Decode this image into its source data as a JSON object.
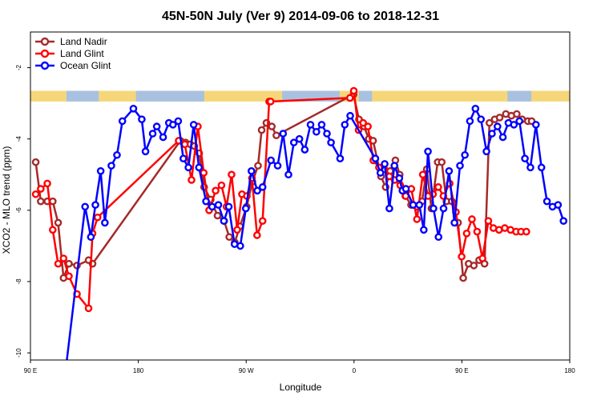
{
  "chart_data": {
    "type": "line",
    "title": "45N-50N July (Ver 9)   2014-09-06 to 2018-12-31",
    "xlabel": "Longitude",
    "ylabel": "XCO2 - MLO trend (ppm)",
    "x_axis": {
      "range_deg_east": [
        90,
        450
      ],
      "ticks": [
        {
          "value": 90,
          "label": "90 E"
        },
        {
          "value": 180,
          "label": "180"
        },
        {
          "value": 270,
          "label": "90 W"
        },
        {
          "value": 360,
          "label": "0"
        },
        {
          "value": 450,
          "label": "90 E"
        },
        {
          "value": 540,
          "label": "180"
        }
      ],
      "note": "longitude unwrapped in degrees east, 90 E to 180 twice around"
    },
    "y_axis": {
      "range": [
        -10.2,
        -1.0
      ],
      "ticks": [
        {
          "value": -2,
          "label": "-2"
        },
        {
          "value": -4,
          "label": "-4"
        },
        {
          "value": -6,
          "label": "-6"
        },
        {
          "value": -8,
          "label": "-8"
        },
        {
          "value": -10,
          "label": "-10"
        }
      ]
    },
    "xlim": [
      90,
      540
    ],
    "ylim": [
      -10.2,
      -1.0
    ],
    "grid": false,
    "legend_position": "top-left",
    "land_mask_strip": {
      "y_top": -2.65,
      "y_bottom": -2.95,
      "land_color": "#f5d77a",
      "ocean_color": "#a9c1e0"
    },
    "series": [
      {
        "name": "Land Nadir",
        "color": "#a52a2a",
        "x": [
          94.4,
          98.6,
          104.1,
          108.6,
          113.1,
          117.6,
          122.1,
          128.8,
          138.5,
          141.8,
          215.1,
          219.4,
          223.4,
          226.7,
          230.8,
          234.9,
          240.4,
          246.1,
          251.6,
          255.9,
          260.5,
          264.8,
          270.4,
          275.2,
          279.9,
          282.9,
          286.9,
          291.4,
          295.2,
          359.6,
          364.1,
          368.4,
          372.3,
          375.9,
          382.5,
          386.4,
          390.1,
          394.5,
          398.1,
          402.8,
          407.6,
          412.5,
          416.8,
          420.7,
          424.6,
          429.8,
          433.2,
          437.1,
          441.6,
          446.8,
          451.1,
          455.6,
          460.0,
          464.4,
          468.9,
          473.0,
          477.4,
          481.5,
          486.7,
          491.3,
          495.8,
          500.2,
          505.0,
          508.2
        ],
        "y": [
          -4.65,
          -5.75,
          -5.75,
          -5.75,
          -6.35,
          -7.9,
          -7.5,
          -7.55,
          -7.4,
          -7.5,
          -4.05,
          -4.1,
          -4.15,
          -4.2,
          -4.4,
          -5.35,
          -5.7,
          -6.15,
          -6.3,
          -6.75,
          -6.9,
          -6.45,
          -5.9,
          -5.2,
          -4.75,
          -3.75,
          -3.55,
          -3.65,
          -3.9,
          -2.75,
          -3.45,
          -3.65,
          -4.0,
          -4.05,
          -5.05,
          -5.35,
          -4.9,
          -4.6,
          -5.0,
          -5.6,
          -5.85,
          -5.9,
          -5.75,
          -4.85,
          -5.95,
          -4.65,
          -4.65,
          -5.75,
          -5.75,
          -6.35,
          -7.9,
          -7.5,
          -7.55,
          -7.4,
          -7.5,
          -3.55,
          -3.45,
          -3.4,
          -3.3,
          -3.35,
          -3.3,
          -3.45,
          -3.5,
          -3.5
        ],
        "hidden_indices_note": "only points within the visible ranges are drawn"
      },
      {
        "name": "Land Glint",
        "color": "#ff0000",
        "x": [
          94.4,
          98.6,
          104.1,
          108.6,
          113.1,
          117.6,
          122.1,
          128.8,
          138.5,
          141.8,
          146.0,
          213.7,
          218.8,
          224.4,
          229.7,
          234.6,
          239.1,
          244.5,
          249.4,
          253.6,
          257.8,
          262.5,
          266.5,
          270.6,
          274.8,
          279.1,
          283.7,
          289.2,
          290.4,
          356.6,
          359.8,
          363.8,
          367.6,
          371.6,
          376.1,
          380.8,
          385.3,
          389.6,
          393.9,
          398.6,
          403.1,
          407.8,
          412.5,
          417.4,
          421.8,
          425.9,
          430.3,
          434.6,
          439.8,
          445.0,
          449.8,
          454.0,
          458.4,
          462.7,
          467.2,
          472.1,
          476.3,
          481.0,
          485.8,
          490.6,
          495.2,
          499.3,
          503.8
        ],
        "y": [
          -5.55,
          -5.4,
          -5.25,
          -6.55,
          -7.5,
          -7.35,
          -7.85,
          -8.35,
          -8.75,
          -6.65,
          -6.2,
          -4.05,
          -4.15,
          -5.15,
          -3.65,
          -4.95,
          -6.0,
          -5.45,
          -5.3,
          -5.9,
          -5.0,
          -6.55,
          -5.55,
          -5.6,
          -5.1,
          -6.7,
          -6.3,
          -2.95,
          -2.95,
          -2.85,
          -2.65,
          -3.75,
          -3.55,
          -3.65,
          -4.6,
          -4.8,
          -4.85,
          -5.05,
          -5.15,
          -5.3,
          -5.6,
          -5.4,
          -6.25,
          -5.0,
          -5.6,
          -5.55,
          -5.35,
          -5.6,
          -5.25,
          -6.05,
          -7.3,
          -6.65,
          -6.25,
          -6.6,
          -7.35,
          -6.3,
          -6.5,
          -6.55,
          -6.5,
          -6.55,
          -6.6,
          -6.6,
          -6.6
        ]
      },
      {
        "name": "Ocean Glint",
        "color": "#0000ff",
        "x": [
          120.0,
          135.6,
          140.4,
          144.2,
          148.6,
          152.1,
          157.5,
          162.2,
          166.7,
          175.9,
          182.9,
          186.0,
          192.0,
          195.4,
          200.7,
          205.5,
          208.9,
          213.3,
          217.6,
          221.8,
          226.2,
          230.6,
          236.5,
          241.6,
          246.8,
          251.4,
          255.5,
          260.3,
          265.1,
          269.7,
          274.4,
          279.3,
          283.7,
          290.7,
          296.3,
          300.8,
          305.3,
          309.8,
          314.4,
          318.9,
          323.7,
          328.6,
          333.0,
          337.4,
          340.8,
          348.4,
          352.3,
          356.8,
          377.8,
          382.0,
          385.6,
          389.5,
          393.7,
          397.8,
          400.4,
          403.3,
          409.3,
          414.5,
          418.2,
          421.7,
          426.3,
          430.5,
          434.7,
          439.3,
          443.8,
          448.4,
          452.5,
          456.7,
          461.3,
          465.9,
          470.5,
          475.1,
          479.7,
          484.2,
          488.8,
          493.4,
          498.0,
          502.6,
          507.2,
          511.8,
          516.4,
          521.0,
          525.6,
          530.2,
          534.8
        ],
        "y": [
          -10.3,
          -5.9,
          -6.75,
          -5.85,
          -4.9,
          -6.35,
          -4.75,
          -4.45,
          -3.5,
          -3.15,
          -3.45,
          -4.35,
          -3.85,
          -3.65,
          -3.95,
          -3.55,
          -3.6,
          -3.5,
          -4.55,
          -4.8,
          -3.6,
          -4.8,
          -5.75,
          -5.9,
          -5.85,
          -6.3,
          -5.9,
          -6.95,
          -7.0,
          -5.95,
          -4.9,
          -5.45,
          -5.35,
          -4.6,
          -4.75,
          -3.85,
          -5.0,
          -4.1,
          -4.0,
          -4.3,
          -3.6,
          -3.8,
          -3.6,
          -3.85,
          -4.1,
          -4.55,
          -3.6,
          -3.35,
          -4.55,
          -4.95,
          -4.7,
          -5.95,
          -4.75,
          -5.1,
          -5.45,
          -5.4,
          -5.85,
          -5.85,
          -6.55,
          -4.35,
          -5.95,
          -6.75,
          -5.95,
          -4.9,
          -6.35,
          -4.75,
          -4.45,
          -3.5,
          -3.15,
          -3.45,
          -4.35,
          -3.85,
          -3.65,
          -3.95,
          -3.55,
          -3.6,
          -3.5,
          -4.55,
          -4.8,
          -3.6,
          -4.8,
          -5.75,
          -5.9,
          -5.85,
          -6.3
        ]
      }
    ]
  }
}
